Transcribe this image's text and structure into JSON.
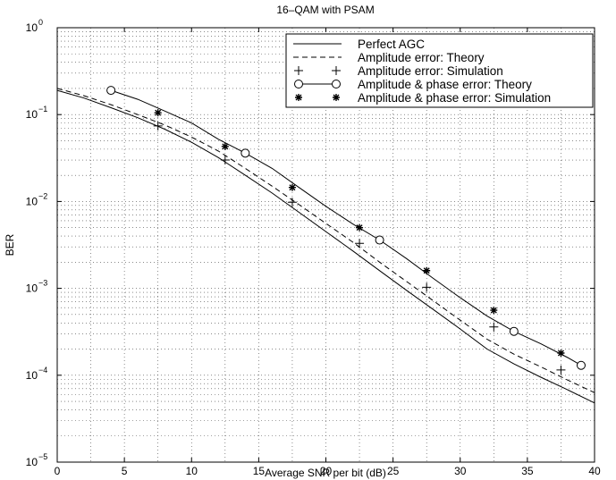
{
  "chart_data": {
    "type": "line",
    "title": "16–QAM with PSAM",
    "xlabel": "Average SNR per bit (dB)",
    "ylabel": "BER",
    "xlim": [
      0,
      40
    ],
    "ylim": [
      1e-05,
      1
    ],
    "yscale": "log",
    "grid": true,
    "legend_position": "top-right",
    "x_ticks": [
      "0",
      "5",
      "10",
      "15",
      "20",
      "25",
      "30",
      "35",
      "40"
    ],
    "y_ticks": [
      {
        "base": "10",
        "exp": "0"
      },
      {
        "base": "10",
        "exp": "−1"
      },
      {
        "base": "10",
        "exp": "−2"
      },
      {
        "base": "10",
        "exp": "−3"
      },
      {
        "base": "10",
        "exp": "−4"
      },
      {
        "base": "10",
        "exp": "−5"
      }
    ],
    "series": [
      {
        "name": "Perfect AGC",
        "style": "solid-line",
        "x": [
          0,
          2,
          4,
          6,
          8,
          10,
          12,
          14,
          16,
          18,
          20,
          22,
          24,
          26,
          28,
          30,
          32,
          34,
          36,
          38,
          40
        ],
        "y": [
          0.19,
          0.155,
          0.12,
          0.092,
          0.068,
          0.048,
          0.032,
          0.02,
          0.0125,
          0.0075,
          0.0045,
          0.0027,
          0.0016,
          0.00095,
          0.00057,
          0.00034,
          0.0002,
          0.000135,
          9.5e-05,
          6.8e-05,
          4.8e-05
        ]
      },
      {
        "name": "Amplitude error: Theory",
        "style": "dashed-line",
        "x": [
          0,
          2,
          4,
          6,
          8,
          10,
          12,
          14,
          16,
          18,
          20,
          22,
          24,
          26,
          28,
          30,
          32,
          34,
          36,
          38,
          40
        ],
        "y": [
          0.2,
          0.165,
          0.13,
          0.1,
          0.076,
          0.055,
          0.038,
          0.024,
          0.015,
          0.0092,
          0.0056,
          0.0034,
          0.002,
          0.0012,
          0.00072,
          0.00043,
          0.00026,
          0.000175,
          0.000125,
          8.8e-05,
          6.3e-05
        ]
      },
      {
        "name": "Amplitude error: Simulation",
        "style": "plus-markers",
        "x": [
          7.5,
          12.5,
          17.5,
          22.5,
          27.5,
          32.5,
          37.5
        ],
        "y": [
          0.074,
          0.03,
          0.0098,
          0.0033,
          0.00103,
          0.00036,
          0.000115
        ]
      },
      {
        "name": "Amplitude & phase error: Theory",
        "style": "solid-line-circles",
        "x": [
          4,
          6,
          8,
          10,
          12,
          14,
          16,
          18,
          20,
          22,
          24,
          26,
          28,
          30,
          32,
          34,
          36,
          38,
          39
        ],
        "y": [
          0.19,
          0.15,
          0.11,
          0.08,
          0.052,
          0.036,
          0.024,
          0.0145,
          0.0088,
          0.0055,
          0.0036,
          0.0022,
          0.0013,
          0.00078,
          0.00048,
          0.00032,
          0.00023,
          0.00016,
          0.00013
        ],
        "marker_x": [
          4,
          14,
          24,
          34,
          39
        ],
        "marker_y": [
          0.19,
          0.036,
          0.0036,
          0.00032,
          0.00013
        ]
      },
      {
        "name": "Amplitude & phase error: Simulation",
        "style": "star-markers",
        "x": [
          7.5,
          12.5,
          17.5,
          22.5,
          27.5,
          32.5,
          37.5
        ],
        "y": [
          0.105,
          0.043,
          0.0145,
          0.005,
          0.0016,
          0.00056,
          0.00018
        ]
      }
    ]
  }
}
